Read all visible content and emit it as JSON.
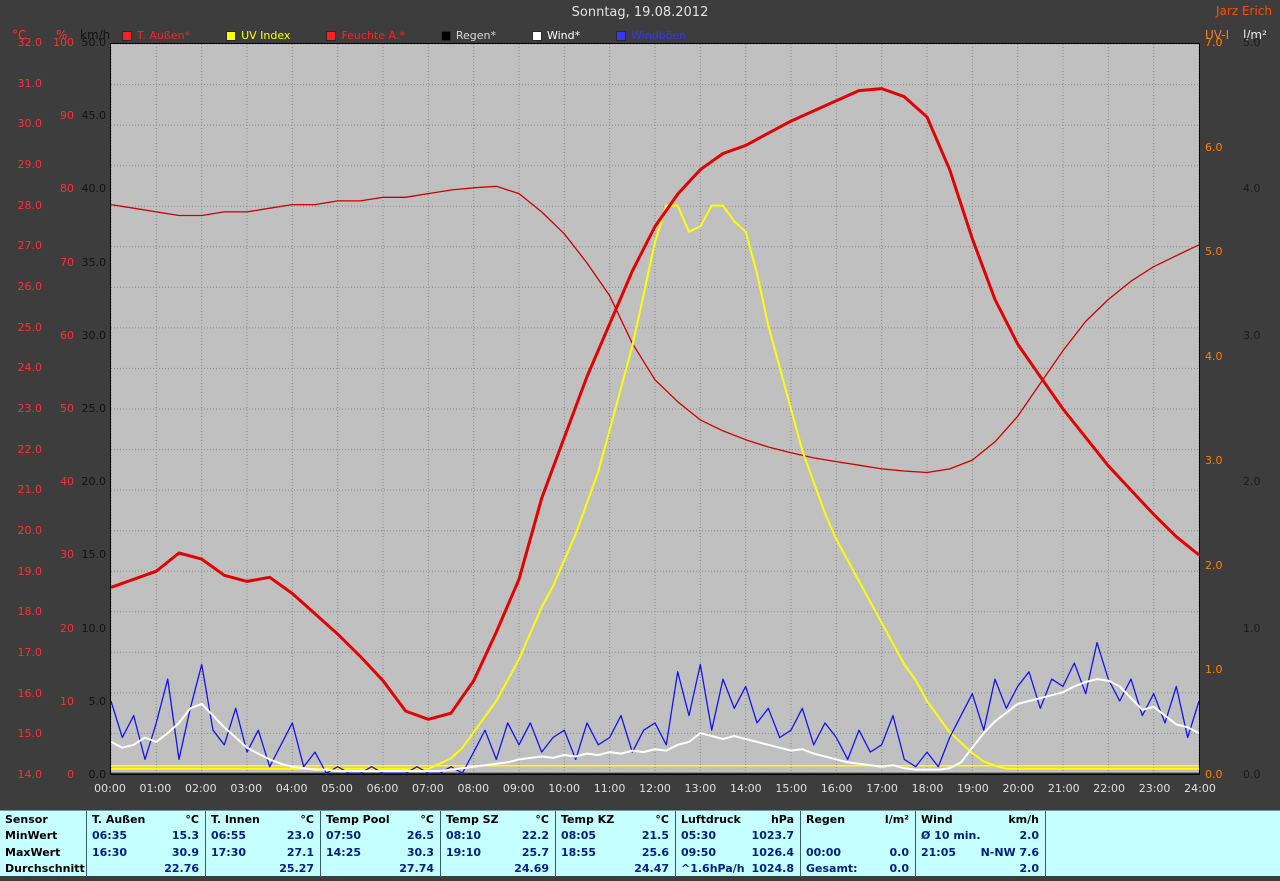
{
  "header": {
    "title": "Sonntag, 19.08.2012",
    "watermark": "Jarz Erich"
  },
  "legend": [
    {
      "label": "T. Außen*",
      "color": "#ff2020"
    },
    {
      "label": "UV Index",
      "color": "#ffff00"
    },
    {
      "label": "Feuchte A.*",
      "color": "#ff2020"
    },
    {
      "label": "Regen*",
      "color": "#000000",
      "text_color": "#d8d8d8"
    },
    {
      "label": "Wind*",
      "color": "#ffffff"
    },
    {
      "label": "Windböen",
      "color": "#3535ff"
    }
  ],
  "axes": {
    "left": [
      {
        "id": "temp",
        "unit": "°C",
        "color": "#ff3030",
        "min": 14,
        "max": 32,
        "step": 1,
        "decimals": 1
      },
      {
        "id": "humidity",
        "unit": "%",
        "color": "#ff3030",
        "min": 0,
        "max": 100,
        "step": 10,
        "decimals": 0
      },
      {
        "id": "wind",
        "unit": "km/h",
        "color": "#121212",
        "min": 0,
        "max": 50,
        "step": 5,
        "decimals": 1
      }
    ],
    "right": [
      {
        "id": "uv",
        "unit": "UV-I",
        "color": "#ff8000",
        "min": 0,
        "max": 7,
        "step": 1,
        "decimals": 1
      },
      {
        "id": "rain",
        "unit": "l/m²",
        "color": "#1a1a1a",
        "min": 0,
        "max": 5,
        "step": 1,
        "decimals": 1
      }
    ]
  },
  "chart_data": {
    "type": "line",
    "title": "Sonntag, 19.08.2012",
    "x_range_hours": [
      0,
      24
    ],
    "grid": true,
    "plot_background": "#c0c0c0",
    "x_tick_labels": [
      "00:00",
      "01:00",
      "02:00",
      "03:00",
      "04:00",
      "05:00",
      "06:00",
      "07:00",
      "08:00",
      "09:00",
      "10:00",
      "11:00",
      "12:00",
      "13:00",
      "14:00",
      "15:00",
      "16:00",
      "17:00",
      "18:00",
      "19:00",
      "20:00",
      "21:00",
      "22:00",
      "23:00",
      "24:00"
    ],
    "scales": {
      "temp": {
        "min": 14,
        "max": 32
      },
      "humidity": {
        "min": 0,
        "max": 100
      },
      "wind": {
        "min": 0,
        "max": 50
      },
      "uv": {
        "min": 0,
        "max": 7
      },
      "rain": {
        "min": 0,
        "max": 5
      }
    },
    "series": [
      {
        "id": "feuchte-aussen",
        "name": "Feuchte A.",
        "scale": "humidity",
        "color": "#cc0000",
        "width": 1.3,
        "step_h": 0.5,
        "values": [
          78,
          77.5,
          77,
          76.5,
          76.5,
          77,
          77,
          77.5,
          78,
          78,
          78.5,
          78.5,
          79,
          79,
          79.5,
          80,
          80.3,
          80.5,
          79.5,
          77,
          74,
          70,
          65.5,
          59,
          54,
          51,
          48.5,
          47,
          45.8,
          44.8,
          44,
          43.3,
          42.8,
          42.3,
          41.8,
          41.5,
          41.3,
          41.8,
          43,
          45.5,
          49,
          53.5,
          58,
          62,
          65,
          67.5,
          69.5,
          71,
          72.5
        ]
      },
      {
        "id": "uv-index",
        "name": "UV Index",
        "scale": "uv",
        "color": "#ffff00",
        "width": 2,
        "step_h": 0.25,
        "values": [
          0.05,
          0.05,
          0.05,
          0.05,
          0.05,
          0.05,
          0.05,
          0.05,
          0.05,
          0.05,
          0.05,
          0.05,
          0.05,
          0.05,
          0.05,
          0.05,
          0.05,
          0.05,
          0.05,
          0.05,
          0.05,
          0.05,
          0.05,
          0.05,
          0.05,
          0.05,
          0.05,
          0.05,
          0.05,
          0.1,
          0.15,
          0.25,
          0.4,
          0.55,
          0.7,
          0.9,
          1.1,
          1.35,
          1.6,
          1.8,
          2.05,
          2.3,
          2.6,
          2.9,
          3.3,
          3.7,
          4.1,
          4.6,
          5.1,
          5.45,
          5.45,
          5.2,
          5.25,
          5.45,
          5.45,
          5.3,
          5.2,
          4.8,
          4.3,
          3.9,
          3.5,
          3.1,
          2.8,
          2.5,
          2.25,
          2.05,
          1.85,
          1.65,
          1.45,
          1.25,
          1.05,
          0.9,
          0.7,
          0.55,
          0.4,
          0.3,
          0.2,
          0.12,
          0.08,
          0.05,
          0.05,
          0.05,
          0.05,
          0.05,
          0.05,
          0.05,
          0.05,
          0.05,
          0.05,
          0.05,
          0.05,
          0.05,
          0.05,
          0.05,
          0.05,
          0.05,
          0.05
        ]
      },
      {
        "id": "uv-baseline",
        "name": "UV Basis",
        "scale": "uv",
        "color": "#ffff00",
        "width": 1.5,
        "step_h": 24,
        "values": [
          0.08,
          0.08
        ]
      },
      {
        "id": "regen",
        "name": "Regen",
        "scale": "rain",
        "color": "#000000",
        "width": 1,
        "step_h": 24,
        "values": [
          0,
          0
        ]
      },
      {
        "id": "windboeen",
        "name": "Windböen",
        "scale": "wind",
        "color": "#1414ee",
        "width": 1.3,
        "step_h": 0.25,
        "values": [
          5,
          2.5,
          4,
          1,
          3.5,
          6.5,
          1,
          4.5,
          7.5,
          3,
          2,
          4.5,
          1.5,
          3,
          0.5,
          2,
          3.5,
          0.5,
          1.5,
          0,
          0.5,
          0,
          0,
          0.5,
          0,
          0,
          0,
          0.5,
          0,
          0,
          0.5,
          0,
          1.5,
          3,
          1,
          3.5,
          2,
          3.5,
          1.5,
          2.5,
          3,
          1,
          3.5,
          2,
          2.5,
          4,
          1.5,
          3,
          3.5,
          2,
          7,
          4,
          7.5,
          3,
          6.5,
          4.5,
          6,
          3.5,
          4.5,
          2.5,
          3,
          4.5,
          2,
          3.5,
          2.5,
          1,
          3,
          1.5,
          2,
          4,
          1,
          0.5,
          1.5,
          0.5,
          2.5,
          4,
          5.5,
          3,
          6.5,
          4.5,
          6,
          7,
          4.5,
          6.5,
          6,
          7.6,
          5.5,
          9,
          6.5,
          5,
          6.5,
          4,
          5.5,
          3.5,
          6,
          2.5,
          5
        ]
      },
      {
        "id": "temp-aussen",
        "name": "T. Außen",
        "scale": "temp",
        "color": "#e00000",
        "width": 3,
        "step_h": 0.5,
        "values": [
          18.6,
          18.8,
          19.0,
          19.45,
          19.3,
          18.9,
          18.75,
          18.85,
          18.45,
          17.95,
          17.45,
          16.9,
          16.3,
          15.55,
          15.35,
          15.5,
          16.3,
          17.5,
          18.8,
          20.8,
          22.3,
          23.8,
          25.1,
          26.4,
          27.5,
          28.3,
          28.9,
          29.3,
          29.5,
          29.8,
          30.1,
          30.35,
          30.6,
          30.85,
          30.9,
          30.7,
          30.2,
          28.9,
          27.2,
          25.7,
          24.6,
          23.8,
          23.0,
          22.3,
          21.6,
          21.0,
          20.4,
          19.85,
          19.4
        ]
      },
      {
        "id": "wind",
        "name": "Wind",
        "scale": "wind",
        "color": "#ffffff",
        "width": 2,
        "step_h": 0.25,
        "values": [
          2.2,
          1.8,
          2.0,
          2.5,
          2.2,
          2.8,
          3.5,
          4.5,
          4.8,
          4.0,
          3.2,
          2.5,
          1.8,
          1.4,
          1.0,
          0.7,
          0.5,
          0.4,
          0.3,
          0.3,
          0.2,
          0.2,
          0.2,
          0.2,
          0.2,
          0.2,
          0.2,
          0.2,
          0.2,
          0.2,
          0.3,
          0.4,
          0.5,
          0.6,
          0.7,
          0.8,
          1.0,
          1.1,
          1.2,
          1.1,
          1.3,
          1.2,
          1.4,
          1.3,
          1.5,
          1.4,
          1.6,
          1.5,
          1.7,
          1.6,
          2.0,
          2.2,
          2.8,
          2.6,
          2.4,
          2.6,
          2.4,
          2.2,
          2.0,
          1.8,
          1.6,
          1.7,
          1.4,
          1.2,
          1.0,
          0.8,
          0.7,
          0.6,
          0.5,
          0.6,
          0.4,
          0.3,
          0.3,
          0.3,
          0.4,
          0.8,
          1.8,
          2.8,
          3.6,
          4.2,
          4.8,
          5.0,
          5.2,
          5.4,
          5.6,
          6.0,
          6.3,
          6.5,
          6.4,
          6.0,
          5.2,
          4.4,
          4.6,
          4.0,
          3.4,
          3.2,
          2.8
        ]
      }
    ]
  },
  "table": {
    "row_labels": [
      "Sensor",
      "MinWert",
      "MaxWert",
      "Durchschnitt"
    ],
    "columns": [
      {
        "name": "T. Außen",
        "unit": "°C",
        "min": [
          "06:35",
          "15.3"
        ],
        "max": [
          "16:30",
          "30.9"
        ],
        "avg": [
          "",
          "22.76"
        ]
      },
      {
        "name": "T. Innen",
        "unit": "°C",
        "min": [
          "06:55",
          "23.0"
        ],
        "max": [
          "17:30",
          "27.1"
        ],
        "avg": [
          "",
          "25.27"
        ]
      },
      {
        "name": "Temp Pool",
        "unit": "°C",
        "min": [
          "07:50",
          "26.5"
        ],
        "max": [
          "14:25",
          "30.3"
        ],
        "avg": [
          "",
          "27.74"
        ]
      },
      {
        "name": "Temp SZ",
        "unit": "°C",
        "min": [
          "08:10",
          "22.2"
        ],
        "max": [
          "19:10",
          "25.7"
        ],
        "avg": [
          "",
          "24.69"
        ]
      },
      {
        "name": "Temp KZ",
        "unit": "°C",
        "min": [
          "08:05",
          "21.5"
        ],
        "max": [
          "18:55",
          "25.6"
        ],
        "avg": [
          "",
          "24.47"
        ]
      },
      {
        "name": "Luftdruck",
        "unit": "hPa",
        "min": [
          "05:30",
          "1023.7"
        ],
        "max": [
          "09:50",
          "1026.4"
        ],
        "avg": [
          "^1.6hPa/h",
          "1024.8"
        ]
      },
      {
        "name": "Regen",
        "unit": "l/m²",
        "min": [
          "",
          ""
        ],
        "max": [
          "00:00",
          "0.0"
        ],
        "avg": [
          "Gesamt:",
          "0.0"
        ]
      },
      {
        "name": "Wind",
        "unit": "km/h",
        "min": [
          "Ø 10 min.",
          "2.0"
        ],
        "max": [
          "21:05",
          "N-NW 7.6"
        ],
        "avg": [
          "",
          "2.0"
        ]
      }
    ]
  }
}
